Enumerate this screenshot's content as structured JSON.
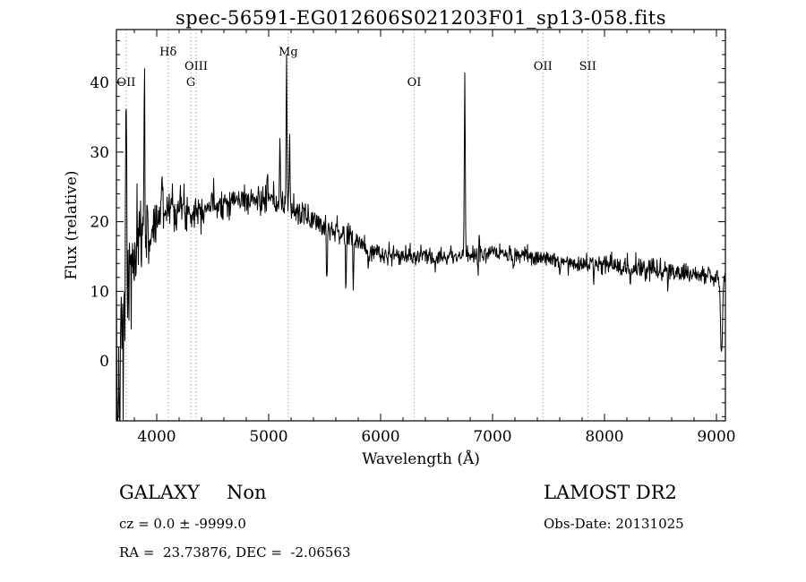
{
  "title": "spec-56591-EG012606S021203F01_sp13-058.fits",
  "footer": {
    "class_label": "GALAXY",
    "subclass": "Non",
    "survey": "LAMOST DR2",
    "cz": "cz = 0.0 ± -9999.0",
    "obs_date": "Obs-Date: 20131025",
    "ra_dec": "RA =  23.73876, DEC =  -2.06563"
  },
  "chart_data": {
    "type": "line",
    "title": "spec-56591-EG012606S021203F01_sp13-058.fits",
    "xlabel": "Wavelength (Å)",
    "ylabel": "Flux (relative)",
    "xlim": [
      3640,
      9080
    ],
    "ylim": [
      -8.6,
      47.6
    ],
    "x_major_ticks": [
      4000,
      5000,
      6000,
      7000,
      8000,
      9000
    ],
    "x_minor_step": 200,
    "y_major_ticks": [
      0,
      10,
      20,
      30,
      40
    ],
    "y_minor_step": 2,
    "grid": false,
    "legend": "none",
    "line_color": "#000000",
    "marker_line_color": "#8a8a8a",
    "line_markers": [
      {
        "wavelength": 3727,
        "label": "OII",
        "row": 3
      },
      {
        "wavelength": 4102,
        "label": "Hδ",
        "row": 1
      },
      {
        "wavelength": 4305,
        "label": "G",
        "row": 3
      },
      {
        "wavelength": 4352,
        "label": "OIII",
        "row": 2
      },
      {
        "wavelength": 5175,
        "label": "Mg",
        "row": 1
      },
      {
        "wavelength": 6300,
        "label": "OI",
        "row": 3
      },
      {
        "wavelength": 7450,
        "label": "OII",
        "row": 2
      },
      {
        "wavelength": 7850,
        "label": "SII",
        "row": 2
      }
    ],
    "continuum": [
      [
        3640,
        -2
      ],
      [
        3665,
        1
      ],
      [
        3700,
        6
      ],
      [
        3740,
        10
      ],
      [
        3780,
        13
      ],
      [
        3830,
        16
      ],
      [
        3880,
        18.5
      ],
      [
        3930,
        17.5
      ],
      [
        3980,
        19.5
      ],
      [
        4040,
        21.5
      ],
      [
        4120,
        22.5
      ],
      [
        4200,
        22
      ],
      [
        4300,
        21.5
      ],
      [
        4400,
        22
      ],
      [
        4500,
        22.5
      ],
      [
        4650,
        23
      ],
      [
        4800,
        23.2
      ],
      [
        4950,
        23
      ],
      [
        5100,
        22.4
      ],
      [
        5250,
        21.4
      ],
      [
        5400,
        20.3
      ],
      [
        5550,
        19.2
      ],
      [
        5700,
        18
      ],
      [
        5850,
        16.6
      ],
      [
        6000,
        15.3
      ],
      [
        6200,
        15
      ],
      [
        6400,
        15
      ],
      [
        6600,
        15.1
      ],
      [
        6800,
        15.3
      ],
      [
        7000,
        15.4
      ],
      [
        7200,
        15.1
      ],
      [
        7400,
        14.9
      ],
      [
        7600,
        14.4
      ],
      [
        7800,
        14.1
      ],
      [
        8000,
        13.8
      ],
      [
        8200,
        13.5
      ],
      [
        8400,
        13.2
      ],
      [
        8600,
        13
      ],
      [
        8800,
        12.5
      ],
      [
        9080,
        11.8
      ]
    ],
    "noise_sigma": [
      [
        3640,
        5
      ],
      [
        3700,
        5
      ],
      [
        3760,
        4
      ],
      [
        3820,
        3.3
      ],
      [
        3880,
        2.6
      ],
      [
        3950,
        2.2
      ],
      [
        4050,
        1.8
      ],
      [
        4200,
        1.6
      ],
      [
        4400,
        1.2
      ],
      [
        4700,
        1.05
      ],
      [
        5000,
        1.0
      ],
      [
        5400,
        0.95
      ],
      [
        5800,
        0.85
      ],
      [
        6100,
        0.7
      ],
      [
        6500,
        0.65
      ],
      [
        7000,
        0.6
      ],
      [
        7500,
        0.6
      ],
      [
        8000,
        0.7
      ],
      [
        8600,
        0.75
      ],
      [
        9080,
        0.85
      ]
    ],
    "spikes": [
      [
        3727,
        43,
        4
      ],
      [
        3890,
        44,
        4
      ],
      [
        4046,
        27,
        4
      ],
      [
        4990,
        27.5,
        4
      ],
      [
        5100,
        31,
        4
      ],
      [
        5160,
        44,
        4
      ],
      [
        5187,
        33,
        4
      ],
      [
        6752,
        40.5,
        4
      ],
      [
        6880,
        18.5,
        4
      ]
    ],
    "dips": [
      [
        3652,
        -10,
        5
      ],
      [
        3672,
        -9,
        4
      ],
      [
        3700,
        -6,
        4
      ],
      [
        5520,
        11,
        4
      ],
      [
        5690,
        10,
        4
      ],
      [
        5756,
        10.5,
        4
      ],
      [
        5890,
        12,
        4
      ],
      [
        6870,
        13,
        5
      ],
      [
        7185,
        13,
        4
      ],
      [
        7600,
        12.5,
        4
      ],
      [
        7905,
        10.5,
        4
      ],
      [
        8230,
        11.5,
        4
      ],
      [
        8565,
        11,
        4
      ],
      [
        9045,
        0.5,
        8
      ]
    ],
    "sample_step": 4,
    "noise_seed": 7
  }
}
